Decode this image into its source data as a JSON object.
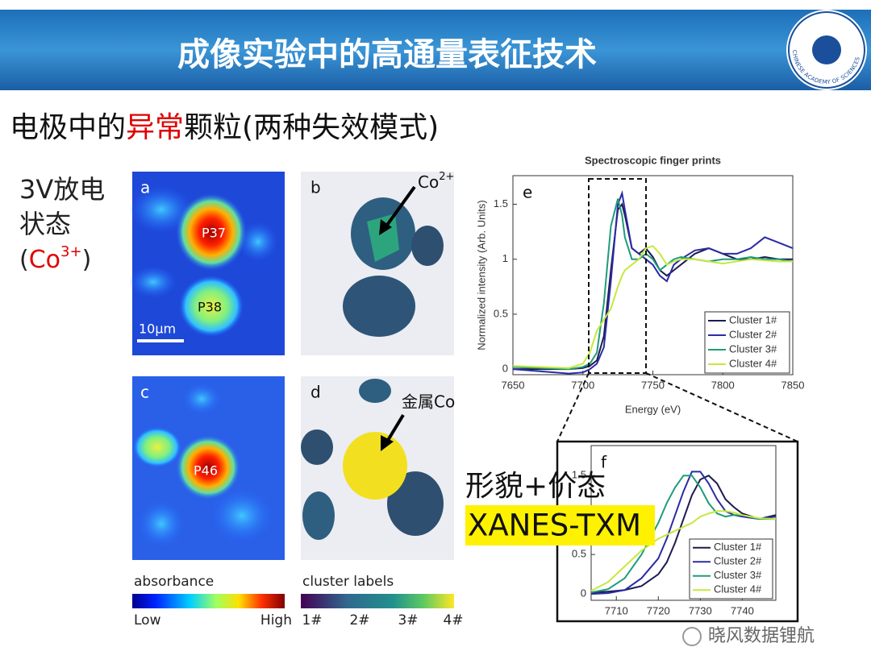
{
  "header": {
    "title": "成像实验中的高通量表征技术",
    "logo_text": "CHINESE ACADEMY OF SCIENCES"
  },
  "subtitle": {
    "before": "电极中的",
    "highlight": "异常",
    "after": "颗粒(两种失效模式)"
  },
  "state": {
    "line1": "3V放电",
    "line2": "状态",
    "open": "(",
    "ion": "Co",
    "charge": "3+",
    "close": ")"
  },
  "panels": {
    "a": "a",
    "b": "b",
    "c": "c",
    "d": "d",
    "p37": "P37",
    "p38": "P38",
    "p46": "P46",
    "scale": "10μm",
    "co2_ion": "Co",
    "co2_charge": "2+",
    "metal": "金属Co"
  },
  "colorbars": {
    "absorbance": "absorbance",
    "low": "Low",
    "high": "High",
    "cluster": "cluster labels",
    "c1": "1#",
    "c2": "2#",
    "c3": "3#",
    "c4": "4#"
  },
  "callout": {
    "line1": "形貌+价态",
    "line2": "XANES-TXM"
  },
  "watermark": "晓风数据锂航",
  "chart_data": [
    {
      "type": "line",
      "title": "Spectroscopic finger prints",
      "panel": "e",
      "xlabel": "Energy (eV)",
      "ylabel": "Normalized intensity (Arb. Units)",
      "x": [
        7650,
        7670,
        7690,
        7700,
        7705,
        7710,
        7715,
        7720,
        7725,
        7728,
        7730,
        7735,
        7740,
        7745,
        7750,
        7755,
        7760,
        7765,
        7770,
        7780,
        7790,
        7800,
        7810,
        7820,
        7830,
        7840,
        7850
      ],
      "series": [
        {
          "name": "Cluster 1#",
          "color": "#1c1c4e",
          "values": [
            0,
            0,
            0,
            0.01,
            0.03,
            0.08,
            0.3,
            0.9,
            1.45,
            1.5,
            1.4,
            1.1,
            1.05,
            1.1,
            1.02,
            0.9,
            0.85,
            0.9,
            0.95,
            1.05,
            1.1,
            1.05,
            1.0,
            1.0,
            1.02,
            1.0,
            1.0
          ]
        },
        {
          "name": "Cluster 2#",
          "color": "#2b2ba6",
          "values": [
            0,
            -0.02,
            -0.04,
            -0.03,
            0,
            0.05,
            0.2,
            0.8,
            1.5,
            1.6,
            1.45,
            1.1,
            1.05,
            1.0,
            0.95,
            0.85,
            0.8,
            0.95,
            1.0,
            1.08,
            1.1,
            1.05,
            1.05,
            1.1,
            1.2,
            1.15,
            1.1
          ]
        },
        {
          "name": "Cluster 3#",
          "color": "#1f9c7a",
          "values": [
            0.02,
            0.01,
            0,
            0.02,
            0.05,
            0.15,
            0.6,
            1.3,
            1.55,
            1.4,
            1.2,
            1.0,
            1.0,
            1.05,
            1.0,
            0.9,
            0.95,
            1.0,
            1.02,
            1.0,
            0.98,
            1.0,
            1.0,
            1.02,
            1.0,
            1.0,
            0.98
          ]
        },
        {
          "name": "Cluster 4#",
          "color": "#c6e83e",
          "values": [
            0.03,
            0.02,
            0.01,
            0.05,
            0.15,
            0.35,
            0.45,
            0.55,
            0.75,
            0.85,
            0.9,
            0.95,
            1.0,
            1.1,
            1.12,
            1.05,
            0.95,
            0.98,
            1.0,
            1.0,
            0.98,
            0.96,
            0.98,
            1.0,
            0.99,
            0.98,
            0.98
          ]
        }
      ],
      "xlim": [
        7650,
        7850
      ],
      "xticks": [
        7650,
        7700,
        7750,
        7800,
        7850
      ],
      "ylim": [
        -0.05,
        1.76
      ],
      "yticks": [
        0,
        0.5,
        1,
        1.5
      ],
      "legend": "lower right"
    },
    {
      "type": "line",
      "panel": "f",
      "x": [
        7704,
        7708,
        7712,
        7716,
        7720,
        7722,
        7724,
        7726,
        7728,
        7730,
        7732,
        7734,
        7736,
        7738,
        7740,
        7744,
        7748
      ],
      "series": [
        {
          "name": "Cluster 1#",
          "color": "#1c1c4e",
          "values": [
            0.02,
            0.03,
            0.05,
            0.1,
            0.25,
            0.4,
            0.65,
            0.95,
            1.25,
            1.45,
            1.5,
            1.4,
            1.2,
            1.1,
            1.02,
            0.95,
            1.0
          ]
        },
        {
          "name": "Cluster 2#",
          "color": "#2b2ba6",
          "values": [
            0,
            0.01,
            0.05,
            0.2,
            0.45,
            0.7,
            1.0,
            1.3,
            1.55,
            1.55,
            1.4,
            1.2,
            1.05,
            1.0,
            0.98,
            0.95,
            0.98
          ]
        },
        {
          "name": "Cluster 3#",
          "color": "#1f9c7a",
          "values": [
            0.02,
            0.06,
            0.2,
            0.5,
            0.9,
            1.15,
            1.35,
            1.5,
            1.5,
            1.35,
            1.15,
            1.02,
            0.98,
            1.0,
            1.0,
            0.95,
            0.95
          ]
        },
        {
          "name": "Cluster 4#",
          "color": "#c6e83e",
          "values": [
            0.04,
            0.15,
            0.35,
            0.55,
            0.7,
            0.75,
            0.8,
            0.85,
            0.9,
            0.98,
            1.02,
            1.05,
            1.05,
            1.03,
            1.0,
            0.96,
            0.95
          ]
        }
      ],
      "xlim": [
        7704,
        7748
      ],
      "xticks": [
        7710,
        7720,
        7730,
        7740
      ],
      "ylim": [
        -0.08,
        1.88
      ],
      "yticks": [
        0,
        0.5,
        1,
        1.5
      ],
      "legend": "lower right"
    }
  ]
}
